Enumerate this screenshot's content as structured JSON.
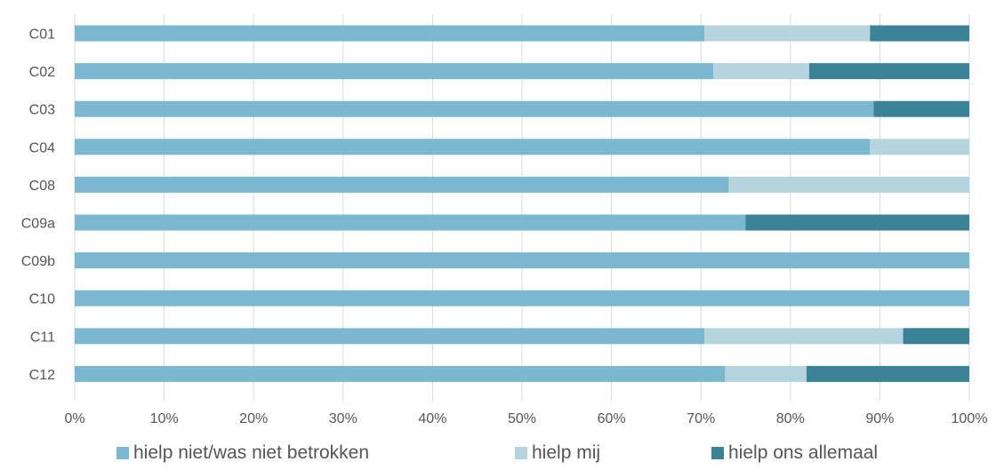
{
  "chart_data": {
    "type": "bar",
    "orientation": "horizontal",
    "stacked": true,
    "percent": true,
    "title": "",
    "xlabel": "",
    "ylabel": "",
    "categories": [
      "C01",
      "C02",
      "C03",
      "C04",
      "C08",
      "C09a",
      "C09b",
      "C10",
      "C11",
      "C12"
    ],
    "series": [
      {
        "name": "hielp niet/was niet betrokken",
        "color": "#7ab8cf",
        "values": [
          70.4,
          71.4,
          89.3,
          88.9,
          73.1,
          75.0,
          100,
          100,
          70.4,
          72.7
        ]
      },
      {
        "name": "hielp mij",
        "color": "#b5d4de",
        "values": [
          18.5,
          10.7,
          0,
          11.1,
          26.9,
          0,
          0,
          0,
          22.2,
          9.1
        ]
      },
      {
        "name": "hielp ons allemaal",
        "color": "#3a8396",
        "values": [
          11.1,
          17.9,
          10.7,
          0,
          0,
          25.0,
          0,
          0,
          7.4,
          18.2
        ]
      }
    ],
    "xlim": [
      0,
      100
    ],
    "xticks": [
      "0%",
      "10%",
      "20%",
      "30%",
      "40%",
      "50%",
      "60%",
      "70%",
      "80%",
      "90%",
      "100%"
    ],
    "grid": true,
    "legend_position": "bottom"
  }
}
